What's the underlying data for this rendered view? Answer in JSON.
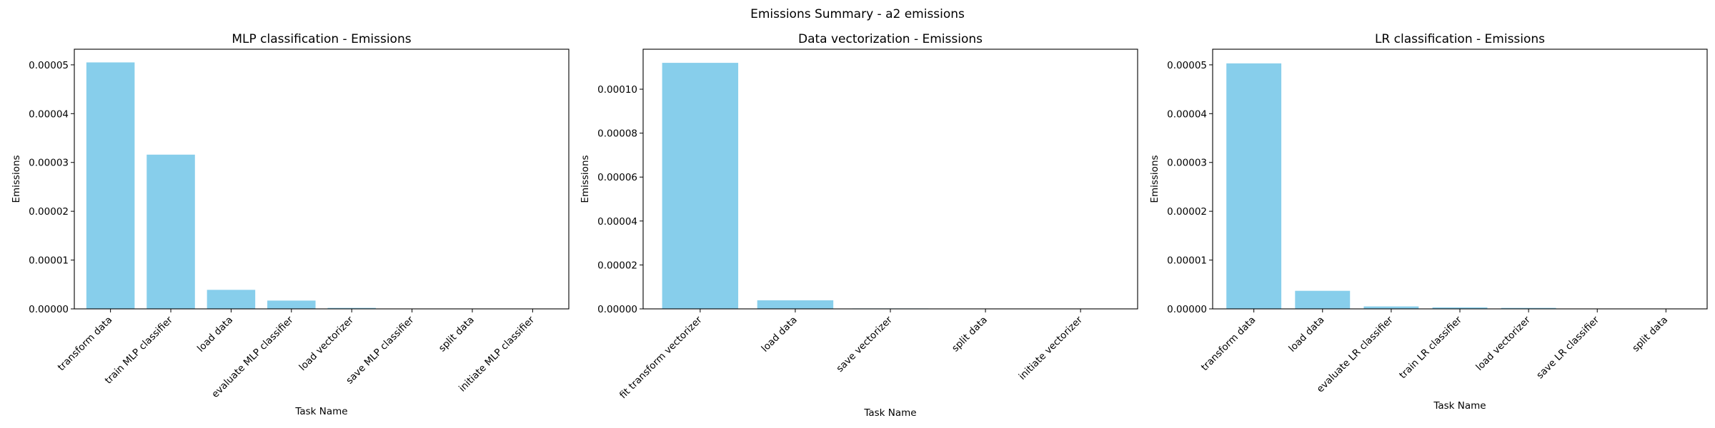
{
  "figure": {
    "suptitle": "Emissions Summary - a2 emissions",
    "bar_color": "#87CEEB"
  },
  "chart_data": [
    {
      "type": "bar",
      "title": "MLP classification - Emissions",
      "xlabel": "Task Name",
      "ylabel": "Emissions",
      "categories": [
        "transform data",
        "train MLP classifier",
        "load data",
        "evaluate MLP classifier",
        "load vectorizer",
        "save MLP classifier",
        "split data",
        "initiate MLP classifier"
      ],
      "values": [
        5.05e-05,
        3.16e-05,
        3.9e-06,
        1.7e-06,
        2e-07,
        5e-08,
        2e-08,
        1e-08
      ],
      "ylim": [
        0,
        5.32e-05
      ],
      "yticks": [
        0,
        1e-05,
        2e-05,
        3e-05,
        4e-05,
        5e-05
      ],
      "ytick_labels": [
        "0.00000",
        "0.00001",
        "0.00002",
        "0.00003",
        "0.00004",
        "0.00005"
      ],
      "grid": false
    },
    {
      "type": "bar",
      "title": "Data vectorization - Emissions",
      "xlabel": "Task Name",
      "ylabel": "Emissions",
      "categories": [
        "fit transform vectorizer",
        "load data",
        "save vectorizer",
        "split data",
        "initiate vectorizer"
      ],
      "values": [
        0.000112,
        3.9e-06,
        2e-07,
        5e-08,
        2e-08
      ],
      "ylim": [
        0,
        0.0001182
      ],
      "yticks": [
        0,
        2e-05,
        4e-05,
        6e-05,
        8e-05,
        0.0001
      ],
      "ytick_labels": [
        "0.00000",
        "0.00002",
        "0.00004",
        "0.00006",
        "0.00008",
        "0.00010"
      ],
      "grid": false
    },
    {
      "type": "bar",
      "title": "LR classification - Emissions",
      "xlabel": "Task Name",
      "ylabel": "Emissions",
      "categories": [
        "transform data",
        "load data",
        "evaluate LR classifier",
        "train LR classifier",
        "load vectorizer",
        "save LR classifier",
        "split data"
      ],
      "values": [
        5.03e-05,
        3.7e-06,
        5e-07,
        3e-07,
        2e-07,
        5e-08,
        2e-08
      ],
      "ylim": [
        0,
        5.32e-05
      ],
      "yticks": [
        0,
        1e-05,
        2e-05,
        3e-05,
        4e-05,
        5e-05
      ],
      "ytick_labels": [
        "0.00000",
        "0.00001",
        "0.00002",
        "0.00003",
        "0.00004",
        "0.00005"
      ],
      "grid": false
    }
  ]
}
